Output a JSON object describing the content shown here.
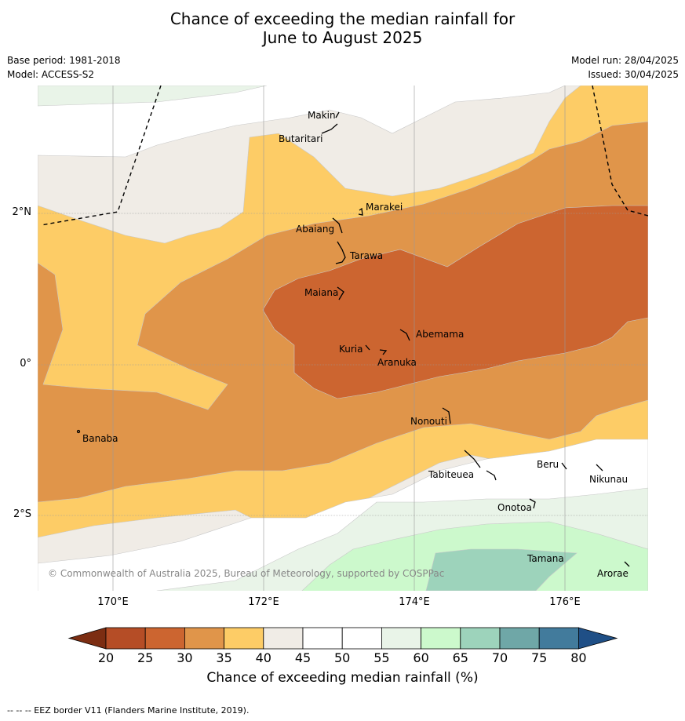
{
  "title_line1": "Chance of exceeding the median rainfall for",
  "title_line2": "June to August 2025",
  "base_period": "Base period: 1981-2018",
  "model": "Model: ACCESS-S2",
  "model_run": "Model run: 28/04/2025",
  "issued": "Issued: 30/04/2025",
  "copyright": "© Commonwealth of Australia 2025, Bureau of Meteorology, supported by COSPPac",
  "lon_labels": [
    "170°E",
    "172°E",
    "174°E",
    "176°E"
  ],
  "lat_labels": [
    "2°N",
    "0°",
    "2°S"
  ],
  "places": [
    "Makin",
    "Butaritari",
    "Marakei",
    "Abaiang",
    "Tarawa",
    "Maiana",
    "Abemama",
    "Kuria",
    "Aranuka",
    "Nonouti",
    "Banaba",
    "Beru",
    "Tabiteuea",
    "Nikunau",
    "Onotoa",
    "Tamana",
    "Arorae"
  ],
  "colorbar": {
    "ticks": [
      "20",
      "25",
      "30",
      "35",
      "40",
      "45",
      "50",
      "55",
      "60",
      "65",
      "70",
      "75",
      "80"
    ],
    "colors": [
      "#7c2d12",
      "#b54d26",
      "#cc6530",
      "#e0954a",
      "#fdcc66",
      "#f0ece6",
      "#ffffff",
      "#ffffff",
      "#e9f4e8",
      "#ccf9cc",
      "#9dd3bb",
      "#6fa7a7",
      "#427b9c",
      "#1f4f86"
    ],
    "label": "Chance of exceeding median rainfall (%)"
  },
  "footer": "--  --  -- EEZ border V11 (Flanders Marine Institute, 2019)."
}
